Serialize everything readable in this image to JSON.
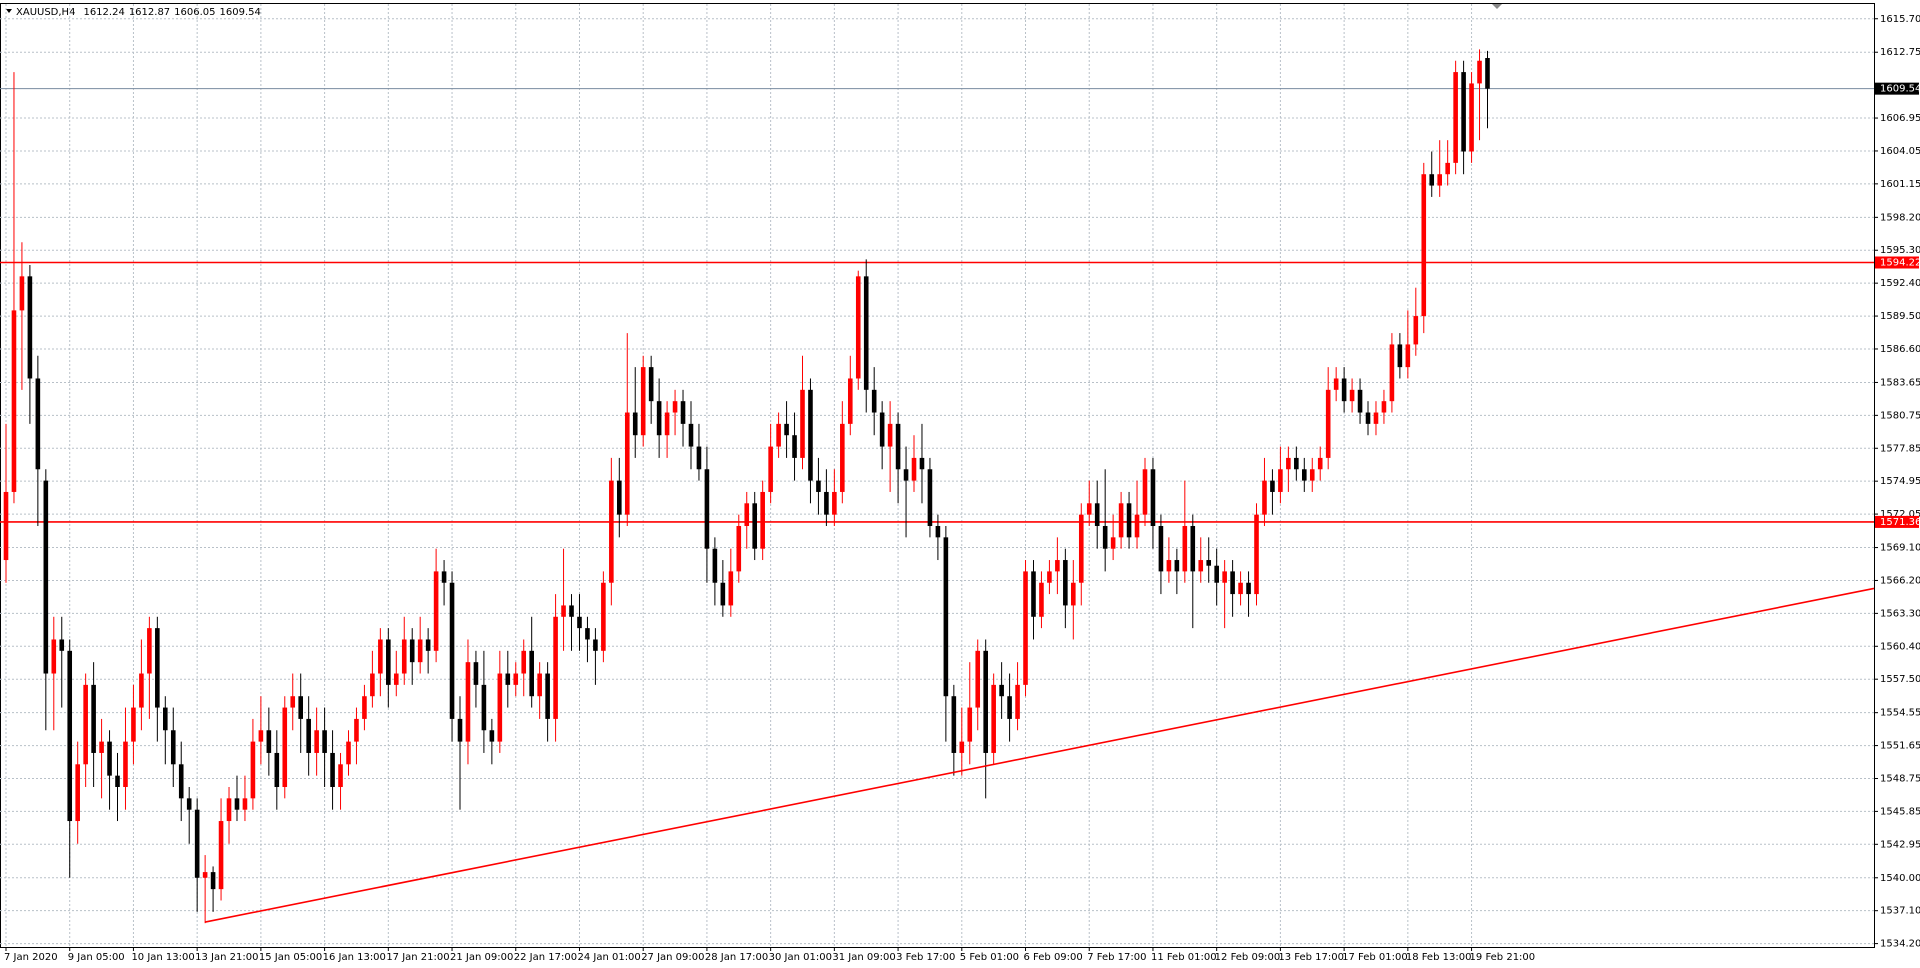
{
  "chart_data": {
    "type": "candlestick",
    "symbol": "XAUUSD,H4",
    "up_color": "#ff0000",
    "down_color": "#000000",
    "grid": true,
    "levels": [
      1594.22,
      1571.36
    ],
    "level_color": "#ff0000",
    "trendline": {
      "start": 1536.1,
      "end": 1565.5
    },
    "ylim": [
      1533.9,
      1617.0
    ],
    "yticks": [
      {
        "value": 1534.2,
        "label": "1534.20"
      },
      {
        "value": 1537.1,
        "label": "1537.10"
      },
      {
        "value": 1540,
        "label": "1540.00"
      },
      1542.95,
      1545.85,
      1548.75,
      1551.65,
      1554.55,
      {
        "value": 1557.5,
        "label": "1557.50"
      },
      {
        "value": 1560.4,
        "label": "1560.40"
      },
      {
        "value": 1563.3,
        "label": "1563.30"
      },
      {
        "value": 1566.2,
        "label": "1566.20"
      },
      {
        "value": 1569.1,
        "label": "1569.10"
      },
      1572.05,
      1574.95,
      1577.85,
      1580.75,
      1583.65,
      {
        "value": 1586.6,
        "label": "1586.60"
      },
      {
        "value": 1589.5,
        "label": "1589.50"
      },
      {
        "value": 1592.4,
        "label": "1592.40"
      },
      {
        "value": 1595.3,
        "label": "1595.30"
      },
      {
        "value": 1598.2,
        "label": "1598.20"
      },
      1601.15,
      1604.05,
      1606.95,
      1612.75,
      {
        "value": 1615.7,
        "label": "1615.70"
      }
    ],
    "categories": [
      "7 Jan 2020",
      null,
      null,
      null,
      null,
      null,
      null,
      null,
      "9 Jan 05:00",
      null,
      null,
      null,
      null,
      null,
      null,
      null,
      "10 Jan 13:00",
      null,
      null,
      null,
      null,
      null,
      null,
      null,
      "13 Jan 21:00",
      null,
      null,
      null,
      null,
      null,
      null,
      null,
      "15 Jan 05:00",
      null,
      null,
      null,
      null,
      null,
      null,
      null,
      "16 Jan 13:00",
      null,
      null,
      null,
      null,
      null,
      null,
      null,
      "17 Jan 21:00",
      null,
      null,
      null,
      null,
      null,
      null,
      null,
      "21 Jan 09:00",
      null,
      null,
      null,
      null,
      null,
      null,
      null,
      "22 Jan 17:00",
      null,
      null,
      null,
      null,
      null,
      null,
      null,
      "24 Jan 01:00",
      null,
      null,
      null,
      null,
      null,
      null,
      null,
      "27 Jan 09:00",
      null,
      null,
      null,
      null,
      null,
      null,
      null,
      "28 Jan 17:00",
      null,
      null,
      null,
      null,
      null,
      null,
      null,
      "30 Jan 01:00",
      null,
      null,
      null,
      null,
      null,
      null,
      null,
      "31 Jan 09:00",
      null,
      null,
      null,
      null,
      null,
      null,
      null,
      "3 Feb 17:00",
      null,
      null,
      null,
      null,
      null,
      null,
      null,
      "5 Feb 01:00",
      null,
      null,
      null,
      null,
      null,
      null,
      null,
      "6 Feb 09:00",
      null,
      null,
      null,
      null,
      null,
      null,
      null,
      "7 Feb 17:00",
      null,
      null,
      null,
      null,
      null,
      null,
      null,
      "11 Feb 01:00",
      null,
      null,
      null,
      null,
      null,
      null,
      null,
      "12 Feb 09:00",
      null,
      null,
      null,
      null,
      null,
      null,
      null,
      "13 Feb 17:00",
      null,
      null,
      null,
      null,
      null,
      null,
      null,
      "17 Feb 01:00",
      null,
      null,
      null,
      null,
      null,
      null,
      null,
      "18 Feb 13:00",
      null,
      null,
      null,
      null,
      null,
      null,
      null,
      "19 Feb 21:00",
      null,
      null
    ],
    "open": [
      1568,
      1574,
      1590,
      1593,
      1584,
      1575,
      1558,
      1561,
      1560,
      1545,
      1550,
      1557,
      1551,
      1552,
      1549,
      1548,
      1552,
      1555,
      1558,
      1562,
      1555,
      1553,
      1550,
      1547,
      1546,
      1540,
      1540.5,
      1539,
      1545,
      1547,
      1546,
      1547,
      1552,
      1553,
      1551,
      1548,
      1555,
      1556,
      1554,
      1551,
      1553,
      1551,
      1548,
      1550,
      1552,
      1554,
      1556,
      1558,
      1561,
      1557,
      1558,
      1561,
      1559,
      1561,
      1560,
      1567,
      1566,
      1554,
      1552,
      1559,
      1557,
      1553,
      1552,
      1558,
      1557,
      1558,
      1560,
      1556,
      1558,
      1554,
      1563,
      1564,
      1563,
      1562,
      1561,
      1560,
      1566,
      1575,
      1572,
      1581,
      1579,
      1585,
      1582,
      1579,
      1581,
      1582,
      1580,
      1578,
      1576,
      1569,
      1566,
      1564,
      1567,
      1571,
      1573,
      1569,
      1574,
      1578,
      1580,
      1579,
      1577,
      1583,
      1575,
      1574,
      1572,
      1574,
      1580,
      1584,
      1593,
      1583,
      1581,
      1578,
      1580,
      1576,
      1575,
      1577,
      1576,
      1571,
      1570,
      1556,
      1551,
      1552,
      1555,
      1560,
      1551,
      1557,
      1556,
      1554,
      1557,
      1567,
      1563,
      1566,
      1567,
      1568,
      1564,
      1566,
      1572,
      1573,
      1571,
      1569,
      1570,
      1573,
      1570,
      1572,
      1576,
      1571,
      1567,
      1568,
      1567,
      1571,
      1567,
      1568,
      1567.5,
      1566,
      1567,
      1565,
      1566,
      1565,
      1572,
      1575,
      1574,
      1576,
      1577,
      1576,
      1575,
      1576,
      1577,
      1583,
      1584,
      1582,
      1583,
      1581,
      1580,
      1581,
      1582,
      1587,
      1585,
      1587,
      1589.5,
      1602,
      1601,
      1602,
      1603,
      1611,
      1604,
      1610,
      1612.24
    ],
    "high": [
      1580,
      1611,
      1596,
      1594,
      1586,
      1576,
      1563,
      1563,
      1561,
      1552,
      1558,
      1559,
      1554,
      1553,
      1551,
      1555,
      1557,
      1561,
      1563,
      1563,
      1556,
      1555,
      1552,
      1548,
      1547,
      1542,
      1541,
      1547,
      1548,
      1549,
      1549,
      1554,
      1556,
      1555,
      1553,
      1556,
      1558,
      1558,
      1556,
      1555,
      1555,
      1553,
      1551,
      1553,
      1555,
      1557,
      1560,
      1562,
      1562,
      1560,
      1563,
      1562,
      1563,
      1562,
      1569,
      1568,
      1567,
      1556,
      1561,
      1560,
      1560,
      1554,
      1560,
      1560,
      1559,
      1561,
      1563,
      1559,
      1559,
      1565,
      1569,
      1565,
      1565,
      1563,
      1562,
      1567,
      1577,
      1577,
      1588,
      1585,
      1586,
      1586,
      1584,
      1582,
      1583,
      1583,
      1582,
      1580,
      1578,
      1570,
      1568,
      1569,
      1572,
      1574,
      1574,
      1575,
      1580,
      1581,
      1582,
      1581,
      1586,
      1584,
      1577,
      1576,
      1576,
      1582,
      1586,
      1593.5,
      1594.5,
      1585,
      1582,
      1582,
      1581,
      1578,
      1579,
      1580,
      1577,
      1572,
      1571,
      1557,
      1555,
      1559,
      1561,
      1561,
      1558,
      1559,
      1558,
      1559,
      1568,
      1568,
      1567,
      1568,
      1570,
      1569,
      1568,
      1573,
      1575,
      1575,
      1576,
      1572,
      1574,
      1574,
      1575,
      1577,
      1577,
      1572,
      1570,
      1569,
      1575,
      1572,
      1570,
      1570,
      1569,
      1568,
      1568,
      1567,
      1567,
      1573,
      1577,
      1576,
      1578,
      1578,
      1578,
      1577,
      1577,
      1578,
      1585,
      1585,
      1585,
      1584,
      1584,
      1582,
      1582,
      1583,
      1588,
      1588,
      1590,
      1592,
      1603,
      1604,
      1605,
      1605,
      1612,
      1612,
      1611,
      1613,
      1612.87
    ],
    "low": [
      1566,
      1573,
      1583,
      1580,
      1571,
      1553,
      1553,
      1555,
      1540,
      1543,
      1548,
      1548,
      1547,
      1546,
      1545,
      1546,
      1550,
      1553,
      1554,
      1552,
      1550,
      1548,
      1545,
      1543,
      1537,
      1536,
      1537,
      1538,
      1543,
      1545,
      1545,
      1546,
      1550,
      1549,
      1546,
      1547,
      1553,
      1551,
      1549,
      1549,
      1548,
      1546,
      1546,
      1549,
      1550,
      1553,
      1555,
      1556,
      1555,
      1556,
      1557,
      1557,
      1558,
      1558,
      1559,
      1564,
      1552,
      1546,
      1550,
      1555,
      1551,
      1550,
      1551,
      1555,
      1556,
      1556,
      1555,
      1554,
      1552,
      1552,
      1560,
      1560,
      1560,
      1559,
      1557,
      1559,
      1564,
      1570,
      1571,
      1577,
      1578,
      1580,
      1577,
      1577,
      1579,
      1578,
      1576,
      1575,
      1566,
      1564,
      1563,
      1563,
      1566,
      1569,
      1568,
      1568,
      1573,
      1577,
      1577,
      1575,
      1576,
      1573,
      1572,
      1571,
      1571,
      1573,
      1579,
      1583,
      1581,
      1579,
      1576,
      1574,
      1573,
      1570,
      1574,
      1573,
      1570,
      1568,
      1552,
      1549,
      1549,
      1550,
      1553,
      1547,
      1550,
      1554,
      1552,
      1553,
      1556,
      1561,
      1562,
      1565,
      1565,
      1562,
      1561,
      1564,
      1571,
      1569,
      1567,
      1568,
      1569,
      1569,
      1569,
      1571,
      1569,
      1565,
      1566,
      1565,
      1566,
      1562,
      1566,
      1566,
      1564,
      1562,
      1563,
      1564,
      1563,
      1564,
      1571,
      1572,
      1573,
      1574,
      1575,
      1574,
      1574,
      1575,
      1576,
      1582,
      1581,
      1581,
      1580,
      1579,
      1579,
      1580,
      1581,
      1584,
      1584,
      1586,
      1588,
      1600,
      1600,
      1601,
      1602,
      1602,
      1603,
      1605,
      1606.05
    ],
    "close": [
      1574,
      1590,
      1593,
      1584,
      1576,
      1558,
      1561,
      1560,
      1545,
      1550,
      1557,
      1551,
      1552,
      1549,
      1548,
      1552,
      1555,
      1558,
      1562,
      1555,
      1553,
      1550,
      1547,
      1546,
      1540,
      1540.5,
      1539,
      1545,
      1547,
      1546,
      1547,
      1552,
      1553,
      1551,
      1548,
      1555,
      1556,
      1554,
      1551,
      1553,
      1551,
      1548,
      1550,
      1552,
      1554,
      1556,
      1558,
      1561,
      1557,
      1558,
      1561,
      1559,
      1561,
      1560,
      1567,
      1566,
      1554,
      1552,
      1559,
      1557,
      1553,
      1552,
      1558,
      1557,
      1558,
      1560,
      1556,
      1558,
      1554,
      1563,
      1564,
      1563,
      1562,
      1561,
      1560,
      1566,
      1575,
      1572,
      1581,
      1579,
      1585,
      1582,
      1579,
      1581,
      1582,
      1580,
      1578,
      1576,
      1569,
      1566,
      1564,
      1567,
      1571,
      1573,
      1569,
      1574,
      1578,
      1580,
      1579,
      1577,
      1583,
      1575,
      1574,
      1572,
      1574,
      1580,
      1584,
      1593,
      1583,
      1581,
      1578,
      1580,
      1576,
      1575,
      1577,
      1576,
      1571,
      1570,
      1556,
      1551,
      1552,
      1555,
      1560,
      1551,
      1557,
      1556,
      1554,
      1557,
      1567,
      1563,
      1566,
      1567,
      1568,
      1564,
      1566,
      1572,
      1573,
      1571,
      1569,
      1570,
      1573,
      1570,
      1572,
      1576,
      1571,
      1567,
      1568,
      1567,
      1571,
      1567,
      1568,
      1567.5,
      1566,
      1567,
      1565,
      1566,
      1565,
      1572,
      1575,
      1574,
      1576,
      1577,
      1576,
      1575,
      1576,
      1577,
      1583,
      1584,
      1582,
      1583,
      1581,
      1580,
      1581,
      1582,
      1587,
      1585,
      1587,
      1589.5,
      1602,
      1601,
      1602,
      1603,
      1611,
      1604,
      1610,
      1612,
      1609.54
    ]
  }
}
